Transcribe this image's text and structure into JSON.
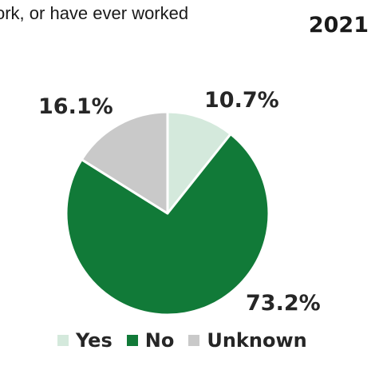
{
  "header": {
    "partial_text": "ork, or have ever worked",
    "year": "2021"
  },
  "chart_data": {
    "type": "pie",
    "categories": [
      "Yes",
      "No",
      "Unknown"
    ],
    "values": [
      10.7,
      73.2,
      16.1
    ],
    "labels": [
      "10.7%",
      "73.2%",
      "16.1%"
    ],
    "colors": [
      "#d4e9dc",
      "#117a38",
      "#c9c9c9"
    ],
    "start_angle_deg": 0,
    "direction": "clockwise",
    "legend_position": "bottom"
  }
}
